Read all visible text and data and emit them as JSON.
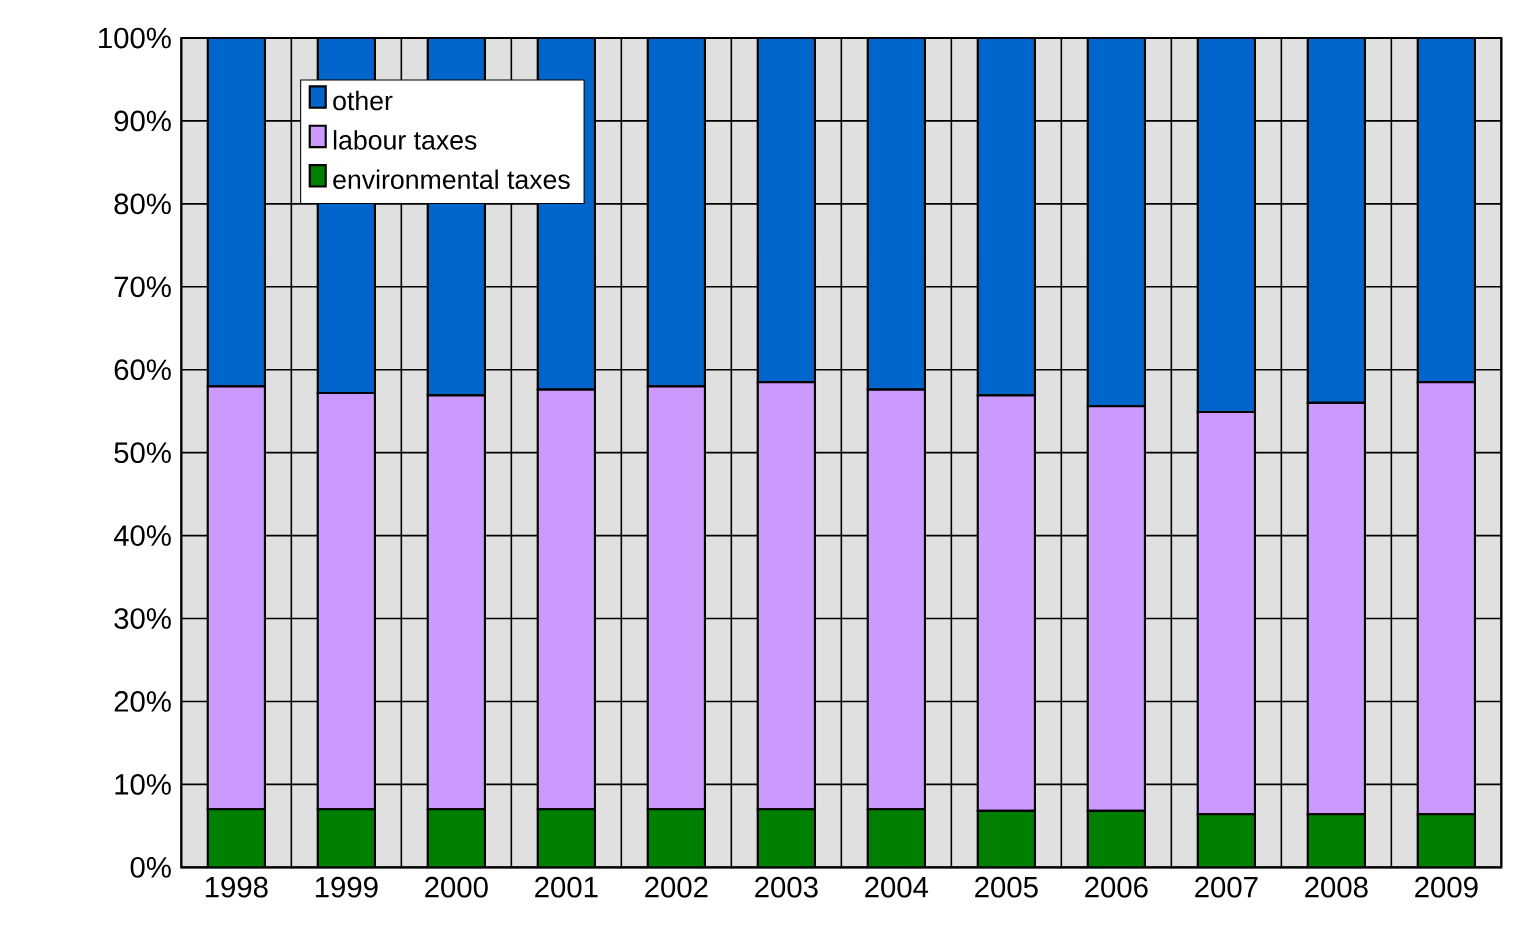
{
  "chart_data": {
    "type": "bar",
    "stacked": true,
    "categories": [
      "1998",
      "1999",
      "2000",
      "2001",
      "2002",
      "2003",
      "2004",
      "2005",
      "2006",
      "2007",
      "2008",
      "2009"
    ],
    "series": [
      {
        "name": "environmental taxes",
        "color": "#008000",
        "values": [
          7.0,
          7.0,
          7.0,
          7.0,
          7.0,
          7.0,
          7.0,
          6.8,
          6.8,
          6.4,
          6.4,
          6.4
        ]
      },
      {
        "name": "labour taxes",
        "color": "#cc99ff",
        "values": [
          51.0,
          50.2,
          49.9,
          50.6,
          51.0,
          51.5,
          50.6,
          50.1,
          48.8,
          48.5,
          49.6,
          52.1
        ]
      },
      {
        "name": "other",
        "color": "#0066cc",
        "values": [
          42.0,
          42.8,
          43.1,
          42.4,
          42.0,
          41.5,
          42.4,
          43.1,
          44.4,
          45.1,
          44.0,
          41.5
        ]
      }
    ],
    "ylim": [
      0,
      100
    ],
    "yticks": [
      {
        "value": 0,
        "label": "0%"
      },
      {
        "value": 10,
        "label": "10%"
      },
      {
        "value": 20,
        "label": "20%"
      },
      {
        "value": 30,
        "label": "30%"
      },
      {
        "value": 40,
        "label": "40%"
      },
      {
        "value": 50,
        "label": "50%"
      },
      {
        "value": 60,
        "label": "60%"
      },
      {
        "value": 70,
        "label": "70%"
      },
      {
        "value": 80,
        "label": "80%"
      },
      {
        "value": 90,
        "label": "90%"
      },
      {
        "value": 100,
        "label": "100%"
      }
    ],
    "grid": true,
    "legend": "top left"
  }
}
